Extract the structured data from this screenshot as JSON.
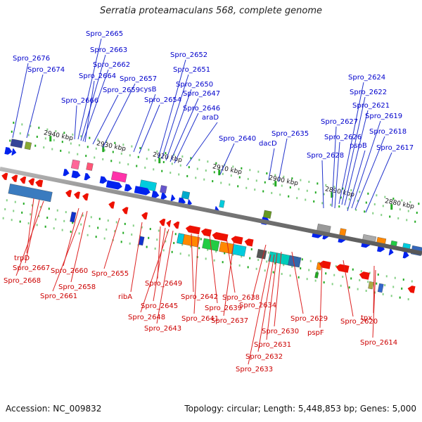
{
  "title": "Serratia proteamaculans 568, complete genome",
  "footer": {
    "accession": "Accession: NC_009832",
    "summary": "Topology: circular; Length: 5,448,853 bp; Genes: 5,000"
  },
  "colors": {
    "forward_label": "#0000cc",
    "reverse_label": "#cc0000",
    "forward_arrow": "#0022ee",
    "reverse_arrow": "#ee1100",
    "backbone": "#888888",
    "tick": "#22aa22",
    "connector_fwd": "#2233cc",
    "connector_rev": "#dd2222"
  },
  "kbp_ticks": [
    {
      "label": "2940 kbp"
    },
    {
      "label": "2930 kbp"
    },
    {
      "label": "2920 kbp"
    },
    {
      "label": "2910 kbp"
    },
    {
      "label": "2900 kbp"
    },
    {
      "label": "2890 kbp"
    },
    {
      "label": "2880 kbp"
    }
  ],
  "forward_genes": [
    {
      "label": "Spro_2676"
    },
    {
      "label": "Spro_2674"
    },
    {
      "label": "Spro_2665"
    },
    {
      "label": "Spro_2663"
    },
    {
      "label": "Spro_2662"
    },
    {
      "label": "Spro_2664"
    },
    {
      "label": "Spro_2666"
    },
    {
      "label": "Spro_2659"
    },
    {
      "label": "Spro_2657"
    },
    {
      "label": "cysB"
    },
    {
      "label": "Spro_2654"
    },
    {
      "label": "Spro_2652"
    },
    {
      "label": "Spro_2651"
    },
    {
      "label": "Spro_2650"
    },
    {
      "label": "Spro_2647"
    },
    {
      "label": "Spro_2646"
    },
    {
      "label": "araD"
    },
    {
      "label": "Spro_2640"
    },
    {
      "label": "dacD"
    },
    {
      "label": "Spro_2635"
    },
    {
      "label": "Spro_2624"
    },
    {
      "label": "Spro_2622"
    },
    {
      "label": "Spro_2621"
    },
    {
      "label": "Spro_2619"
    },
    {
      "label": "Spro_2627"
    },
    {
      "label": "Spro_2618"
    },
    {
      "label": "Spro_2626"
    },
    {
      "label": "pspB"
    },
    {
      "label": "Spro_2617"
    },
    {
      "label": "Spro_2628"
    }
  ],
  "reverse_genes": [
    {
      "label": "trpD"
    },
    {
      "label": "Spro_2667"
    },
    {
      "label": "Spro_2668"
    },
    {
      "label": "Spro_2660"
    },
    {
      "label": "Spro_2658"
    },
    {
      "label": "Spro_2661"
    },
    {
      "label": "Spro_2655"
    },
    {
      "label": "ribA"
    },
    {
      "label": "Spro_2649"
    },
    {
      "label": "Spro_2645"
    },
    {
      "label": "Spro_2648"
    },
    {
      "label": "Spro_2643"
    },
    {
      "label": "Spro_2642"
    },
    {
      "label": "Spro_2641"
    },
    {
      "label": "Spro_2639"
    },
    {
      "label": "Spro_2638"
    },
    {
      "label": "Spro_2637"
    },
    {
      "label": "Spro_2634"
    },
    {
      "label": "Spro_2629"
    },
    {
      "label": "Spro_2630"
    },
    {
      "label": "Spro_2631"
    },
    {
      "label": "Spro_2632"
    },
    {
      "label": "Spro_2633"
    },
    {
      "label": "pspF"
    },
    {
      "label": "Spro_2620"
    },
    {
      "label": "tpx"
    },
    {
      "label": "Spro_2614"
    }
  ]
}
